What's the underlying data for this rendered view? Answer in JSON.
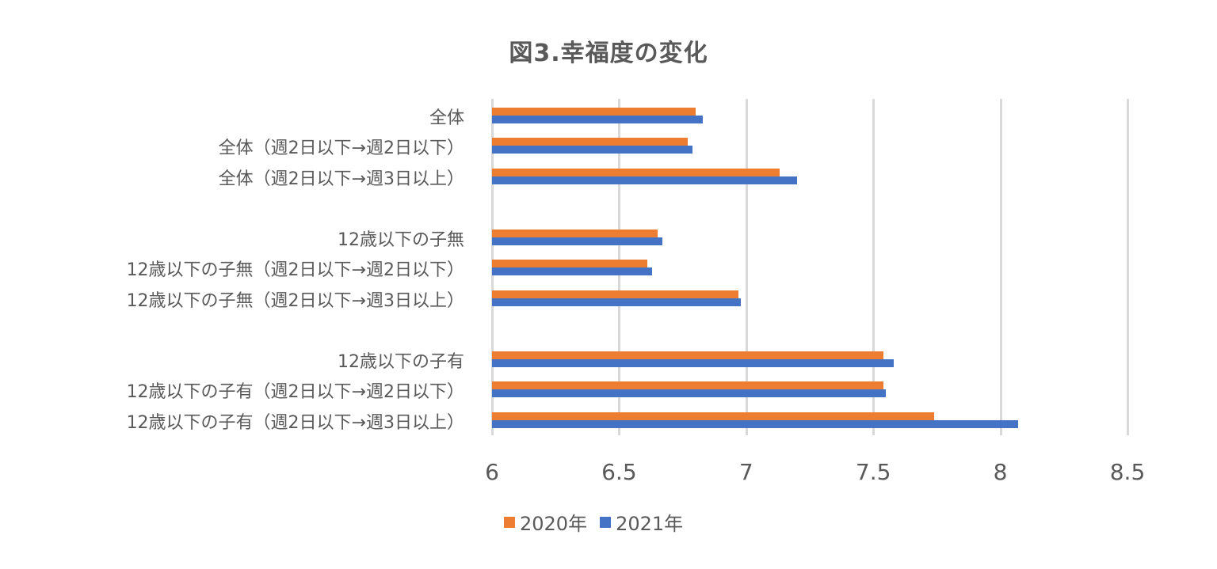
{
  "chart_data": {
    "type": "bar",
    "orientation": "horizontal",
    "title": "図3.幸福度の変化",
    "xlabel": "",
    "ylabel": "",
    "xlim": [
      6,
      8.5
    ],
    "x_ticks": [
      "6",
      "6.5",
      "7",
      "7.5",
      "8",
      "8.5"
    ],
    "grid": true,
    "legend_position": "bottom",
    "categories": [
      "全体",
      "全体（週2日以下→週2日以下）",
      "全体（週2日以下→週3日以上）",
      "12歳以下の子無",
      "12歳以下の子無（週2日以下→週2日以下）",
      "12歳以下の子無（週2日以下→週3日以上）",
      "12歳以下の子有",
      "12歳以下の子有（週2日以下→週2日以下）",
      "12歳以下の子有（週2日以下→週3日以上）"
    ],
    "series": [
      {
        "name": "2020年",
        "color": "#ed7d31",
        "values": [
          6.8,
          6.77,
          7.13,
          6.65,
          6.61,
          6.97,
          7.54,
          7.54,
          7.74
        ]
      },
      {
        "name": "2021年",
        "color": "#4472c4",
        "values": [
          6.83,
          6.79,
          7.2,
          6.67,
          6.63,
          6.98,
          7.58,
          7.55,
          8.07
        ]
      }
    ]
  },
  "legend": {
    "s2020": "2020年",
    "s2021": "2021年"
  }
}
